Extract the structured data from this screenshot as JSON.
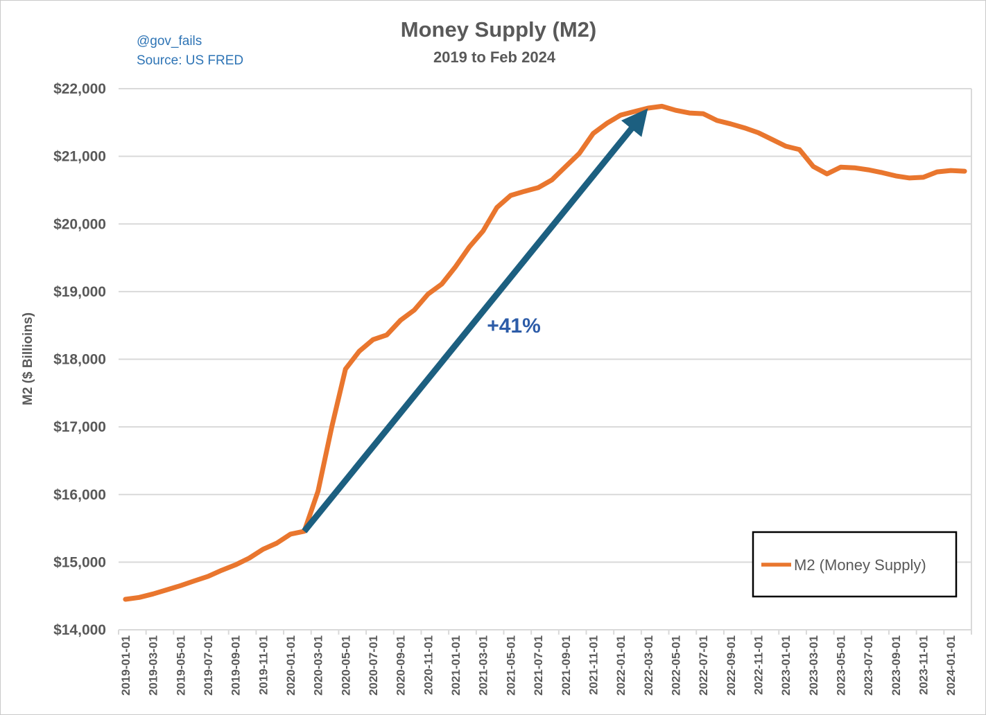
{
  "header": {
    "title": "Money Supply (M2)",
    "subtitle": "2019 to Feb 2024",
    "credit_handle": "@gov_fails",
    "credit_source": "Source: US FRED"
  },
  "y_axis": {
    "title": "M2 ($ Billioins)",
    "tick_labels": [
      "$22,000",
      "$21,000",
      "$20,000",
      "$19,000",
      "$18,000",
      "$17,000",
      "$16,000",
      "$15,000",
      "$14,000"
    ],
    "tick_values": [
      22000,
      21000,
      20000,
      19000,
      18000,
      17000,
      16000,
      15000,
      14000
    ]
  },
  "legend": {
    "label": "M2 (Money Supply)"
  },
  "colors": {
    "series_line": "#E9762E",
    "arrow": "#1C5F80",
    "pct_label": "#2D5CA8",
    "credit_blue": "#2E74B5",
    "text_gray": "#595959",
    "gridline": "#D9D9D9"
  },
  "chart_data": {
    "type": "line",
    "title": "Money Supply (M2)",
    "subtitle": "2019 to Feb 2024",
    "xlabel": "",
    "ylabel": "M2 ($ Billioins)",
    "ylim": [
      14000,
      22000
    ],
    "ytick_step": 1000,
    "x_tick_every": 2,
    "grid": "horizontal",
    "legend_position": "inside-bottom-right",
    "series_name": "M2 (Money Supply)",
    "months": [
      "2019-01-01",
      "2019-02-01",
      "2019-03-01",
      "2019-04-01",
      "2019-05-01",
      "2019-06-01",
      "2019-07-01",
      "2019-08-01",
      "2019-09-01",
      "2019-10-01",
      "2019-11-01",
      "2019-12-01",
      "2020-01-01",
      "2020-02-01",
      "2020-03-01",
      "2020-04-01",
      "2020-05-01",
      "2020-06-01",
      "2020-07-01",
      "2020-08-01",
      "2020-09-01",
      "2020-10-01",
      "2020-11-01",
      "2020-12-01",
      "2021-01-01",
      "2021-02-01",
      "2021-03-01",
      "2021-04-01",
      "2021-05-01",
      "2021-06-01",
      "2021-07-01",
      "2021-08-01",
      "2021-09-01",
      "2021-10-01",
      "2021-11-01",
      "2021-12-01",
      "2022-01-01",
      "2022-02-01",
      "2022-03-01",
      "2022-04-01",
      "2022-05-01",
      "2022-06-01",
      "2022-07-01",
      "2022-08-01",
      "2022-09-01",
      "2022-10-01",
      "2022-11-01",
      "2022-12-01",
      "2023-01-01",
      "2023-02-01",
      "2023-03-01",
      "2023-04-01",
      "2023-05-01",
      "2023-06-01",
      "2023-07-01",
      "2023-08-01",
      "2023-09-01",
      "2023-10-01",
      "2023-11-01",
      "2023-12-01",
      "2024-01-01",
      "2024-02-01"
    ],
    "values": [
      14451,
      14478,
      14530,
      14590,
      14653,
      14722,
      14790,
      14880,
      14960,
      15060,
      15190,
      15280,
      15415,
      15457,
      16050,
      17000,
      17856,
      18119,
      18290,
      18360,
      18577,
      18727,
      18964,
      19112,
      19369,
      19660,
      19896,
      20243,
      20422,
      20482,
      20536,
      20651,
      20849,
      21044,
      21337,
      21489,
      21610,
      21662,
      21713,
      21740,
      21680,
      21640,
      21630,
      21530,
      21480,
      21420,
      21350,
      21250,
      21150,
      21100,
      20850,
      20740,
      20840,
      20830,
      20800,
      20760,
      20710,
      20680,
      20690,
      20770,
      20790,
      20780
    ],
    "annotation": {
      "label": "+41%",
      "from_month": "2020-02-01",
      "from_value": 15457,
      "to_month": "2022-03-01",
      "to_value": 21713
    }
  }
}
